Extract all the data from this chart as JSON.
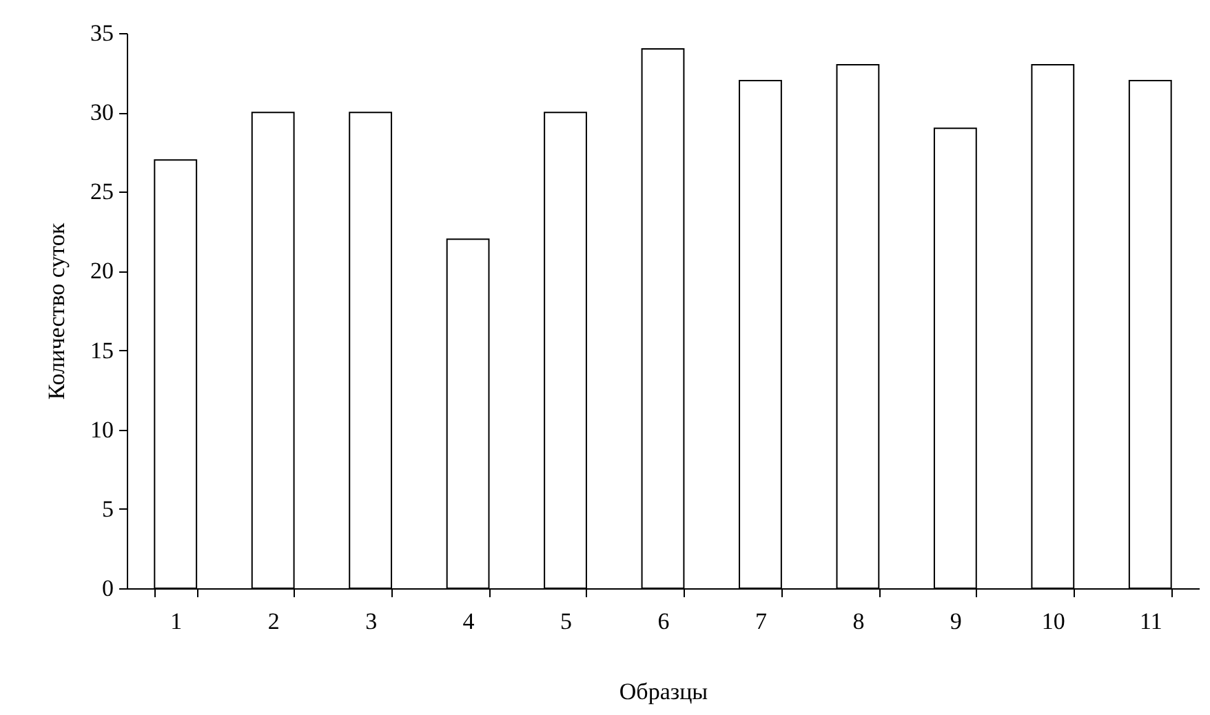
{
  "chart_data": {
    "type": "bar",
    "xlabel": "Образцы",
    "ylabel": "Количество суток",
    "categories": [
      "1",
      "2",
      "3",
      "4",
      "5",
      "6",
      "7",
      "8",
      "9",
      "10",
      "11"
    ],
    "values": [
      27,
      30,
      30,
      22,
      30,
      34,
      32,
      33,
      29,
      33,
      32
    ],
    "color": "#ffffff",
    "ylim": [
      0,
      35
    ],
    "yticks": [
      0,
      5,
      10,
      15,
      20,
      25,
      30,
      35
    ],
    "grid": false
  }
}
